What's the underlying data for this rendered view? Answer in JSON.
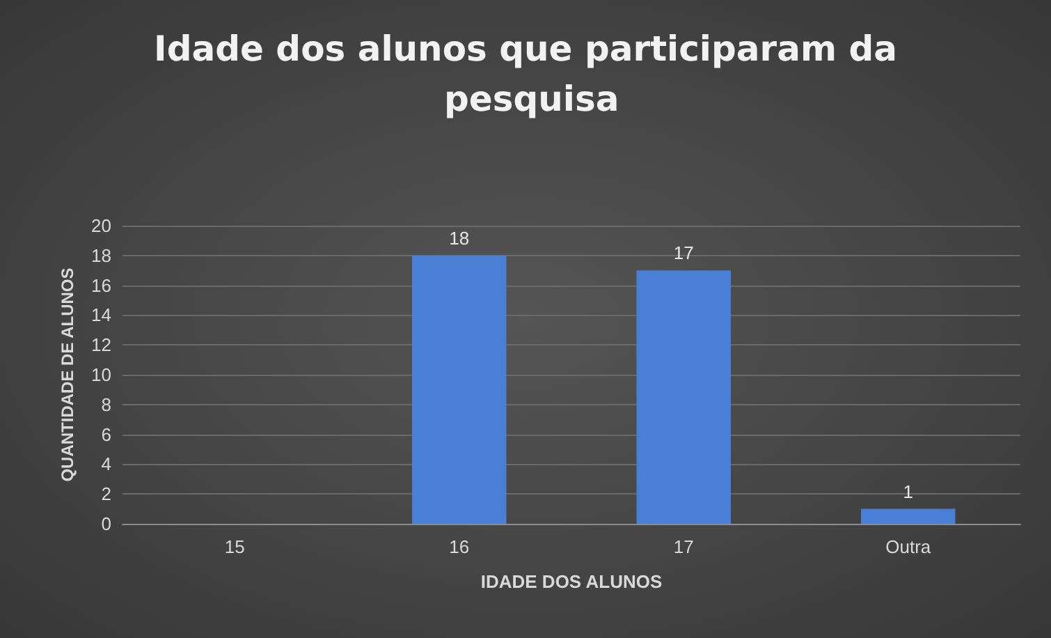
{
  "chart_data": {
    "type": "bar",
    "title": "Idade dos alunos que participaram da pesquisa",
    "xlabel": "IDADE DOS ALUNOS",
    "ylabel": "QUANTIDADE DE ALUNOS",
    "categories": [
      "15",
      "16",
      "17",
      "Outra"
    ],
    "values": [
      0,
      18,
      17,
      1
    ],
    "value_labels": [
      null,
      "18",
      "17",
      "1"
    ],
    "color": "#4a7fd6",
    "ylim": [
      0,
      20
    ],
    "yticks": [
      0,
      2,
      4,
      6,
      8,
      10,
      12,
      14,
      16,
      18,
      20
    ],
    "grid": "y"
  }
}
